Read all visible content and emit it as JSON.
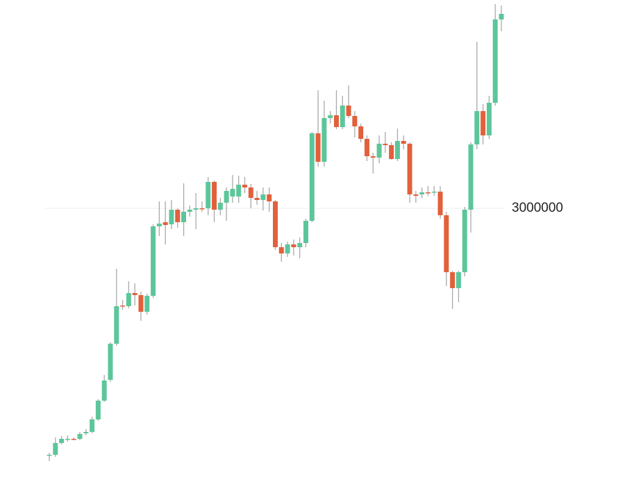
{
  "chart_data": {
    "type": "candlestick",
    "up_color": "#5cc69a",
    "down_color": "#e2603b",
    "wick_color": "#a9a9a9",
    "ylim": [
      1000000,
      4500000
    ],
    "yticks": [
      3000000
    ],
    "grid": true,
    "open": [
      1220000,
      1225000,
      1310000,
      1340000,
      1340000,
      1340000,
      1380000,
      1390000,
      1480000,
      1615000,
      1765000,
      2025000,
      2300000,
      2295000,
      2390000,
      2375000,
      2255000,
      2370000,
      2870000,
      2900000,
      2885000,
      2990000,
      2900000,
      2975000,
      2990000,
      3000000,
      3000000,
      3190000,
      2990000,
      3040000,
      3085000,
      3085000,
      3170000,
      3150000,
      3075000,
      3060000,
      3100000,
      3050000,
      2720000,
      2675000,
      2740000,
      2720000,
      2750000,
      2910000,
      3540000,
      3335000,
      3650000,
      3670000,
      3585000,
      3740000,
      3665000,
      3590000,
      3500000,
      3375000,
      3365000,
      3465000,
      3455000,
      3355000,
      3485000,
      3465000,
      3100000,
      3100000,
      3115000,
      3115000,
      3120000,
      2950000,
      2540000,
      2425000,
      2540000,
      2990000,
      3460000,
      3700000,
      3525000,
      3760000,
      4360000
    ],
    "high": [
      1240000,
      1350000,
      1360000,
      1365000,
      1350000,
      1390000,
      1410000,
      1500000,
      1625000,
      1800000,
      2035000,
      2565000,
      2340000,
      2475000,
      2460000,
      2400000,
      2385000,
      2885000,
      3050000,
      3050000,
      3060000,
      3000000,
      3180000,
      3020000,
      3110000,
      3050000,
      3225000,
      3200000,
      3075000,
      3150000,
      3240000,
      3235000,
      3225000,
      3175000,
      3125000,
      3150000,
      3150000,
      3060000,
      2750000,
      2760000,
      2775000,
      2790000,
      2925000,
      3550000,
      3850000,
      3775000,
      3700000,
      3850000,
      3810000,
      3885000,
      3700000,
      3610000,
      3525000,
      3400000,
      3525000,
      3550000,
      3475000,
      3575000,
      3525000,
      3475000,
      3125000,
      3150000,
      3160000,
      3160000,
      3160000,
      2975000,
      2550000,
      2550000,
      3010000,
      3475000,
      4200000,
      3750000,
      3810000,
      4470000,
      4460000
    ],
    "low": [
      1180000,
      1210000,
      1300000,
      1320000,
      1330000,
      1330000,
      1365000,
      1380000,
      1470000,
      1605000,
      1750000,
      2010000,
      2270000,
      2280000,
      2300000,
      2190000,
      2235000,
      2355000,
      2800000,
      2740000,
      2850000,
      2860000,
      2800000,
      2940000,
      2850000,
      2975000,
      2950000,
      2900000,
      2950000,
      2910000,
      3040000,
      3040000,
      3110000,
      3000000,
      3025000,
      2985000,
      2975000,
      2700000,
      2615000,
      2650000,
      2660000,
      2640000,
      2720000,
      2900000,
      3300000,
      3300000,
      3610000,
      3570000,
      3570000,
      3650000,
      3510000,
      3475000,
      3340000,
      3250000,
      3325000,
      3400000,
      3350000,
      3340000,
      3425000,
      3040000,
      3040000,
      3075000,
      3090000,
      3090000,
      2925000,
      2440000,
      2275000,
      2325000,
      2510000,
      2825000,
      3425000,
      3460000,
      3500000,
      3740000,
      4275000
    ],
    "close": [
      1225000,
      1310000,
      1340000,
      1340000,
      1335000,
      1375000,
      1390000,
      1480000,
      1615000,
      1760000,
      2025000,
      2295000,
      2295000,
      2390000,
      2375000,
      2255000,
      2370000,
      2870000,
      2890000,
      2880000,
      2990000,
      2900000,
      2975000,
      2990000,
      3000000,
      2995000,
      3190000,
      2990000,
      3040000,
      3125000,
      3140000,
      3170000,
      3150000,
      3075000,
      3060000,
      3100000,
      3050000,
      2720000,
      2675000,
      2740000,
      2720000,
      2750000,
      2910000,
      3540000,
      3335000,
      3650000,
      3670000,
      3585000,
      3740000,
      3665000,
      3590000,
      3500000,
      3375000,
      3365000,
      3465000,
      3455000,
      3355000,
      3485000,
      3465000,
      3100000,
      3090000,
      3115000,
      3110000,
      3120000,
      2950000,
      2540000,
      2425000,
      2540000,
      2990000,
      3460000,
      3700000,
      3525000,
      3760000,
      4360000,
      4400000
    ]
  }
}
